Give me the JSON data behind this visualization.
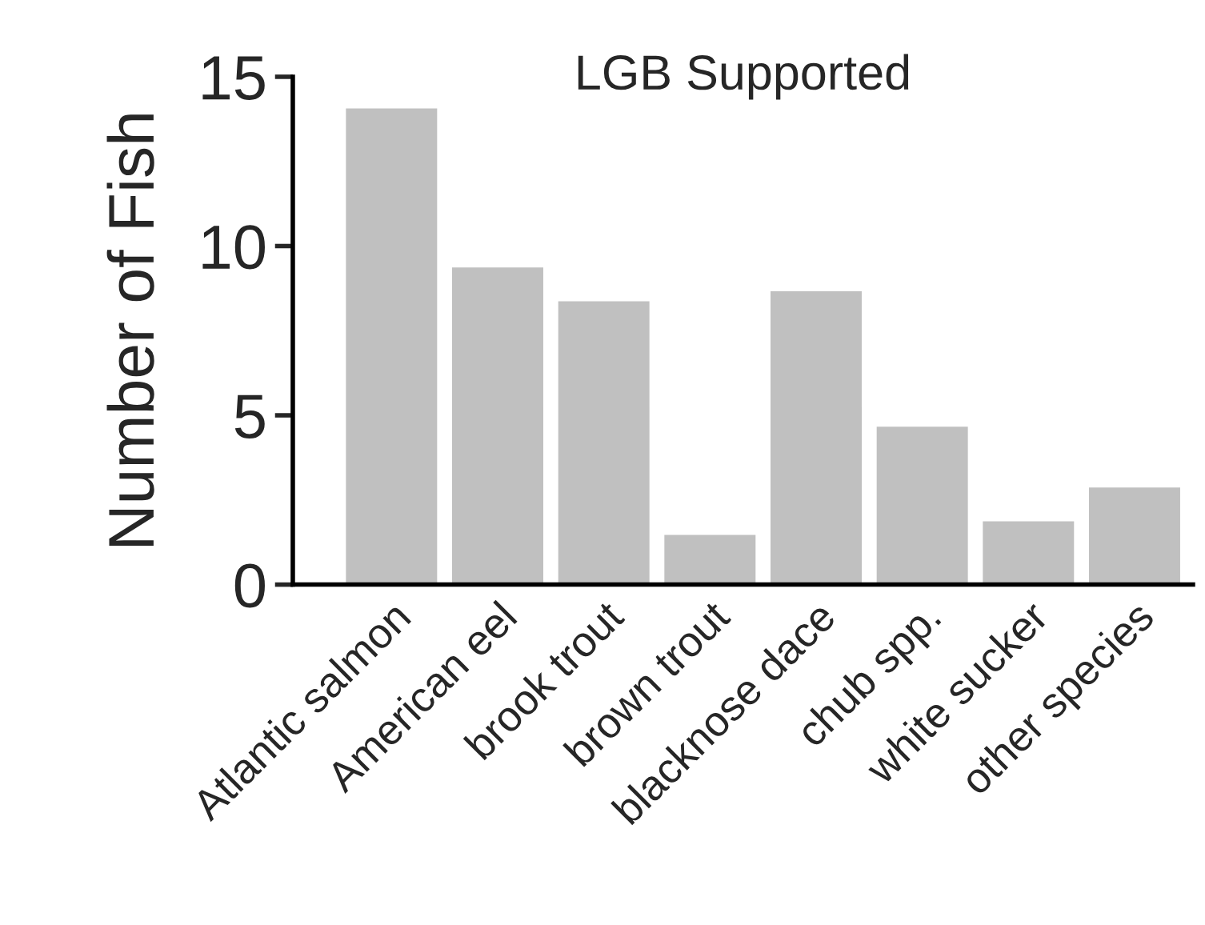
{
  "chart_data": {
    "type": "bar",
    "title": "LGB Supported",
    "ylabel": "Number of Fish",
    "categories": [
      "Atlantic salmon",
      "American eel",
      "brook trout",
      "brown trout",
      "blacknose dace",
      "chub spp.",
      "white sucker",
      "other species"
    ],
    "values": [
      14.1,
      9.4,
      8.4,
      1.5,
      8.7,
      4.7,
      1.9,
      2.9
    ],
    "color": "#c0c0c0",
    "ylim": [
      0,
      15
    ],
    "yticks": [
      0,
      5,
      10,
      15
    ],
    "grid": false
  }
}
